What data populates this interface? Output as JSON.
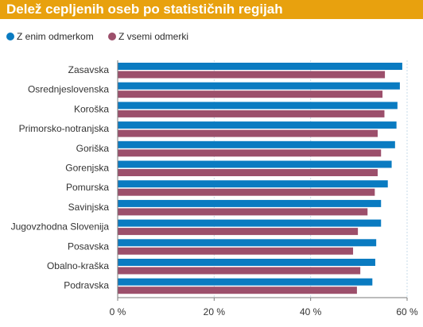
{
  "colors": {
    "title_bar": "#e8a10e",
    "series_1": "#0a7bc1",
    "series_2": "#9c4f6b",
    "grid": "#c7dbe8"
  },
  "chart_data": {
    "type": "bar",
    "orientation": "horizontal",
    "title": "Delež cepljenih oseb po statističnih regijah",
    "categories": [
      "Zasavska",
      "Osrednjeslovenska",
      "Koroška",
      "Primorsko-notranjska",
      "Goriška",
      "Gorenjska",
      "Pomurska",
      "Savinjska",
      "Jugovzhodna Slovenija",
      "Posavska",
      "Obalno-kraška",
      "Podravska"
    ],
    "series": [
      {
        "name": "Z enim odmerkom",
        "values": [
          59.0,
          58.5,
          58.0,
          57.8,
          57.5,
          56.8,
          56.0,
          54.6,
          54.6,
          53.6,
          53.4,
          52.8
        ]
      },
      {
        "name": "Z vsemi odmerki",
        "values": [
          55.4,
          54.9,
          55.3,
          53.9,
          54.6,
          53.9,
          53.3,
          51.8,
          49.8,
          48.8,
          50.3,
          49.6
        ]
      }
    ],
    "xlim": [
      0,
      60
    ],
    "xticks": [
      "0 %",
      "20 %",
      "40 %",
      "60 %"
    ],
    "grid": true,
    "legend_position": "top-left"
  }
}
